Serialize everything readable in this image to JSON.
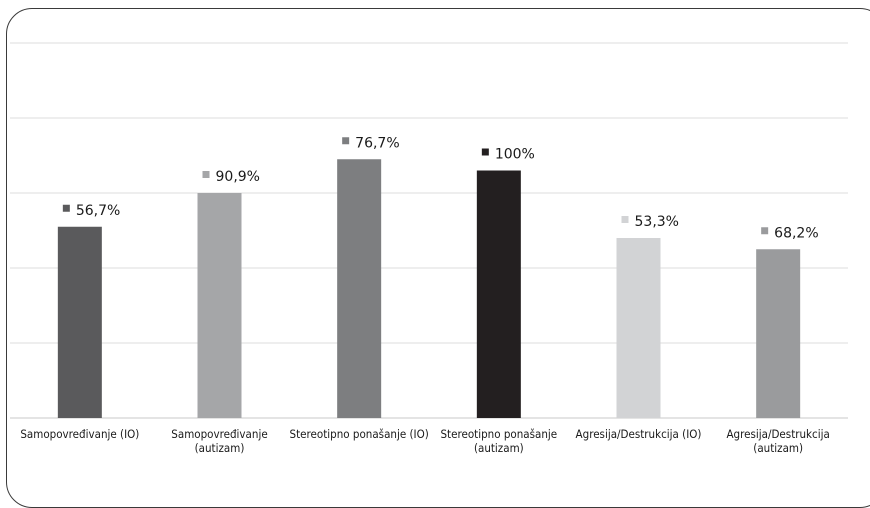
{
  "chart_data": {
    "type": "bar",
    "title": "",
    "xlabel": "",
    "ylabel": "",
    "ylim": [
      0,
      100
    ],
    "grid": true,
    "legend": "none",
    "categories": [
      "Samopovređivanje (IO)",
      "Samopovređivanje (autizam)",
      "Stereotipno ponašanje (IO)",
      "Stereotipno ponašanje (autizam)",
      "Agresija/Destrukcija (IO)",
      "Agresija/Destrukcija (autizam)"
    ],
    "category_lines": [
      [
        "Samopovređivanje (IO)"
      ],
      [
        "Samopovređivanje",
        "(autizam)"
      ],
      [
        "Stereotipno ponašanje (IO)"
      ],
      [
        "Stereotipno ponašanje",
        "(autizam)"
      ],
      [
        "Agresija/Destrukcija (IO)"
      ],
      [
        "Agresija/Destrukcija",
        "(autizam)"
      ]
    ],
    "values": [
      56.7,
      90.9,
      76.7,
      100,
      53.3,
      68.2
    ],
    "value_labels": [
      "56,7%",
      "90,9%",
      "76,7%",
      "100%",
      "53,3%",
      "68,2%"
    ],
    "bar_heights_shown": [
      51,
      60,
      69,
      66,
      48,
      45
    ],
    "colors": [
      "#5a5a5c",
      "#a5a6a8",
      "#7d7e80",
      "#231f20",
      "#d2d3d5",
      "#9a9b9d"
    ]
  }
}
